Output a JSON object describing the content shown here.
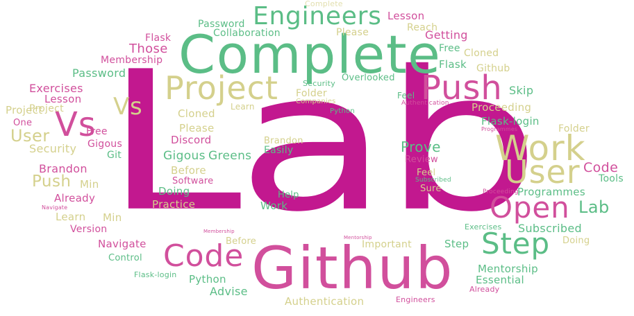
{
  "colors": {
    "magenta": "#c2188f",
    "pink": "#d14f9c",
    "green": "#5bbd86",
    "olive": "#d4d08c",
    "light_olive": "#e2dfae"
  },
  "words": [
    {
      "text": "Lab",
      "color": "magenta"
    },
    {
      "text": "Complete",
      "color": "green"
    },
    {
      "text": "Github",
      "color": "pink"
    },
    {
      "text": "Push",
      "color": "pink"
    },
    {
      "text": "Work",
      "color": "olive"
    },
    {
      "text": "Project",
      "color": "olive"
    },
    {
      "text": "Engineers",
      "color": "green"
    },
    {
      "text": "Vs",
      "color": "pink"
    },
    {
      "text": "User",
      "color": "olive"
    },
    {
      "text": "Open",
      "color": "pink"
    },
    {
      "text": "Step",
      "color": "green"
    },
    {
      "text": "Code",
      "color": "pink"
    },
    {
      "text": "Lab",
      "color": "green"
    },
    {
      "text": "Prove",
      "color": "green"
    },
    {
      "text": "Code",
      "color": "pink"
    },
    {
      "text": "Push",
      "color": "olive"
    },
    {
      "text": "Project",
      "color": "olive"
    },
    {
      "text": "Vs",
      "color": "olive"
    },
    {
      "text": "User",
      "color": "olive"
    },
    {
      "text": "Complete",
      "color": "light_olive"
    },
    {
      "text": "Password",
      "color": "green"
    },
    {
      "text": "Collaboration",
      "color": "green"
    },
    {
      "text": "Lesson",
      "color": "pink"
    },
    {
      "text": "Reach",
      "color": "olive"
    },
    {
      "text": "Please",
      "color": "olive"
    },
    {
      "text": "Getting",
      "color": "pink"
    },
    {
      "text": "Flask",
      "color": "pink"
    },
    {
      "text": "Those",
      "color": "pink"
    },
    {
      "text": "Membership",
      "color": "pink"
    },
    {
      "text": "Free",
      "color": "green"
    },
    {
      "text": "Cloned",
      "color": "olive"
    },
    {
      "text": "Password",
      "color": "green"
    },
    {
      "text": "Flask",
      "color": "green"
    },
    {
      "text": "Github",
      "color": "olive"
    },
    {
      "text": "Overlooked",
      "color": "green"
    },
    {
      "text": "Security",
      "color": "green"
    },
    {
      "text": "Folder",
      "color": "olive"
    },
    {
      "text": "Companies",
      "color": "olive"
    },
    {
      "text": "Skip",
      "color": "green"
    },
    {
      "text": "Exercises",
      "color": "pink"
    },
    {
      "text": "Lesson",
      "color": "pink"
    },
    {
      "text": "Learn",
      "color": "olive"
    },
    {
      "text": "Feel",
      "color": "green"
    },
    {
      "text": "Authentication",
      "color": "pink"
    },
    {
      "text": "Proceeding",
      "color": "olive"
    },
    {
      "text": "Project",
      "color": "olive"
    },
    {
      "text": "Cloned",
      "color": "olive"
    },
    {
      "text": "Python",
      "color": "green"
    },
    {
      "text": "Flask-login",
      "color": "green"
    },
    {
      "text": "One",
      "color": "pink"
    },
    {
      "text": "Please",
      "color": "olive"
    },
    {
      "text": "Programmes",
      "color": "pink"
    },
    {
      "text": "Folder",
      "color": "olive"
    },
    {
      "text": "Free",
      "color": "pink"
    },
    {
      "text": "Discord",
      "color": "pink"
    },
    {
      "text": "Brandon",
      "color": "olive"
    },
    {
      "text": "Gigous",
      "color": "pink"
    },
    {
      "text": "Security",
      "color": "olive"
    },
    {
      "text": "Git",
      "color": "green"
    },
    {
      "text": "Gigous",
      "color": "green"
    },
    {
      "text": "Greens",
      "color": "green"
    },
    {
      "text": "Easily",
      "color": "green"
    },
    {
      "text": "Review",
      "color": "pink"
    },
    {
      "text": "Brandon",
      "color": "pink"
    },
    {
      "text": "Before",
      "color": "olive"
    },
    {
      "text": "Feel",
      "color": "olive"
    },
    {
      "text": "Subscribed",
      "color": "green"
    },
    {
      "text": "Tools",
      "color": "green"
    },
    {
      "text": "Min",
      "color": "olive"
    },
    {
      "text": "Software",
      "color": "pink"
    },
    {
      "text": "Sure",
      "color": "olive"
    },
    {
      "text": "Programmes",
      "color": "green"
    },
    {
      "text": "Doing",
      "color": "green"
    },
    {
      "text": "Help",
      "color": "green"
    },
    {
      "text": "Already",
      "color": "pink"
    },
    {
      "text": "Proceeding",
      "color": "pink"
    },
    {
      "text": "Practice",
      "color": "olive"
    },
    {
      "text": "Navigate",
      "color": "pink"
    },
    {
      "text": "Learn",
      "color": "olive"
    },
    {
      "text": "Work",
      "color": "green"
    },
    {
      "text": "Version",
      "color": "pink"
    },
    {
      "text": "Min",
      "color": "olive"
    },
    {
      "text": "Exercises",
      "color": "green"
    },
    {
      "text": "Subscribed",
      "color": "green"
    },
    {
      "text": "Membership",
      "color": "pink"
    },
    {
      "text": "Mentorship",
      "color": "pink"
    },
    {
      "text": "Doing",
      "color": "olive"
    },
    {
      "text": "Navigate",
      "color": "pink"
    },
    {
      "text": "Before",
      "color": "olive"
    },
    {
      "text": "Important",
      "color": "olive"
    },
    {
      "text": "Step",
      "color": "green"
    },
    {
      "text": "Control",
      "color": "green"
    },
    {
      "text": "Mentorship",
      "color": "green"
    },
    {
      "text": "Flask-login",
      "color": "green"
    },
    {
      "text": "Python",
      "color": "green"
    },
    {
      "text": "Essential",
      "color": "green"
    },
    {
      "text": "Advise",
      "color": "green"
    },
    {
      "text": "Already",
      "color": "pink"
    },
    {
      "text": "Authentication",
      "color": "olive"
    },
    {
      "text": "Engineers",
      "color": "pink"
    }
  ]
}
